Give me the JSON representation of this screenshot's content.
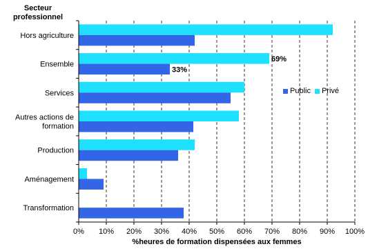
{
  "chart_data": {
    "type": "bar",
    "orientation": "horizontal",
    "ylabel": "Secteur\nprofessionnel",
    "xlabel": "%heures de formation dispensées aux femmes",
    "categories": [
      "Hors agriculture",
      "Ensemble",
      "Services",
      "Autres actions de\nformation",
      "Production",
      "Aménagement",
      "Transformation"
    ],
    "series": [
      {
        "name": "Public",
        "color": "#3366e6",
        "values": [
          42,
          33,
          55,
          41.5,
          36,
          9,
          38
        ]
      },
      {
        "name": "Privé",
        "color": "#1ee0ff",
        "values": [
          92,
          69,
          60,
          58,
          42,
          3,
          null
        ]
      }
    ],
    "data_labels": [
      {
        "category": "Ensemble",
        "series": "Privé",
        "text": "69%"
      },
      {
        "category": "Ensemble",
        "series": "Public",
        "text": "33%"
      }
    ],
    "xlim": [
      0,
      100
    ],
    "xticks": [
      "0%",
      "10%",
      "20%",
      "30%",
      "40%",
      "50%",
      "60%",
      "70%",
      "80%",
      "90%",
      "100%"
    ],
    "grid": "vertical dashed",
    "legend_position": "right"
  }
}
